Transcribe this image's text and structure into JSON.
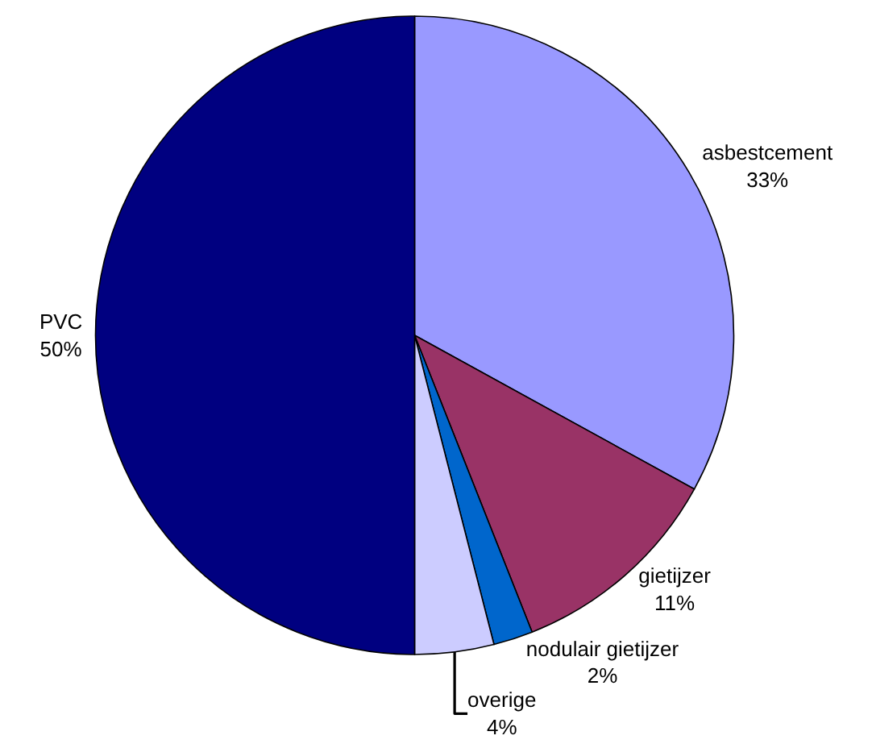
{
  "chart_data": {
    "type": "pie",
    "categories": [
      "asbestcement",
      "gietijzer",
      "nodulair gietijzer",
      "overige",
      "PVC"
    ],
    "values": [
      33,
      11,
      2,
      4,
      50
    ],
    "value_labels": [
      "33%",
      "11%",
      "2%",
      "4%",
      "50%"
    ],
    "colors": [
      "#9999ff",
      "#993366",
      "#0066cc",
      "#ccccff",
      "#000080"
    ],
    "legend": false
  }
}
